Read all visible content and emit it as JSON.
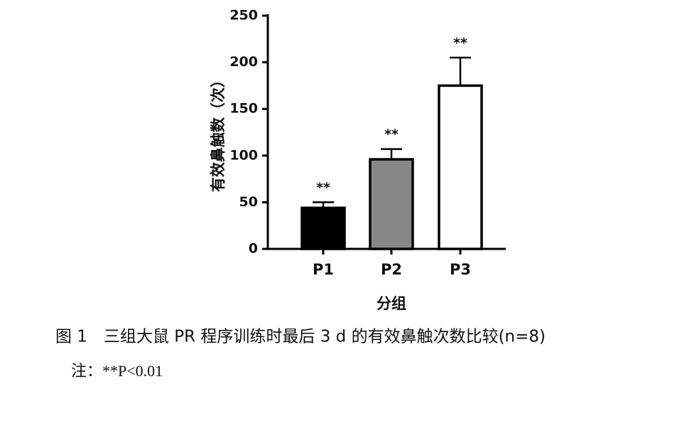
{
  "chart_data": {
    "type": "bar",
    "y_label": "有效鼻触数（次）",
    "x_label": "分组",
    "categories": [
      "P1",
      "P2",
      "P3"
    ],
    "values": [
      44,
      96,
      175
    ],
    "errors": [
      6,
      11,
      30
    ],
    "colors": [
      "#000000",
      "#888888",
      "#ffffff"
    ],
    "annotations": [
      "**",
      "**",
      "**"
    ],
    "ylim": [
      0,
      250
    ],
    "yticks": [
      0,
      50,
      100,
      150,
      200,
      250
    ],
    "caption": "图 1　三组大鼠 PR 程序训练时最后 3 d 的有效鼻触次数比较(n=8)",
    "note": "注：**P<0.01"
  }
}
